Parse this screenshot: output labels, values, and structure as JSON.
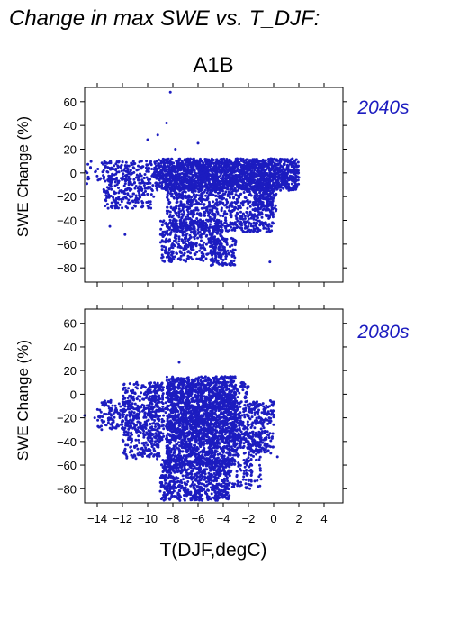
{
  "figure": {
    "title": "Change in max SWE vs. T_DJF:",
    "scenario": "A1B",
    "colors": {
      "points": "#1c1cc0",
      "period_text": "#1c1cc0",
      "axes": "#000000"
    }
  },
  "chart_data": [
    {
      "type": "scatter",
      "period_label": "2040s",
      "ylabel": "SWE Change (%)",
      "xlabel": "",
      "xlim": [
        -15,
        5.5
      ],
      "ylim": [
        -92,
        72
      ],
      "yticks": [
        60,
        40,
        20,
        0,
        -20,
        -40,
        -60,
        -80
      ],
      "xticks": [],
      "series": [
        {
          "clusters": [
            {
              "x": [
                -9.5,
                2
              ],
              "y": [
                -15,
                12
              ],
              "n": 1500
            },
            {
              "x": [
                -8.5,
                0
              ],
              "y": [
                -50,
                10
              ],
              "n": 1300
            },
            {
              "x": [
                -9,
                -4
              ],
              "y": [
                -75,
                -40
              ],
              "n": 450
            },
            {
              "x": [
                -5,
                -3
              ],
              "y": [
                -78,
                -55
              ],
              "n": 120
            },
            {
              "x": [
                -13.5,
                -9.5
              ],
              "y": [
                -30,
                10
              ],
              "n": 300
            },
            {
              "x": [
                -1.5,
                0.2
              ],
              "y": [
                -32,
                -5
              ],
              "n": 120
            },
            {
              "x": [
                -15,
                -11
              ],
              "y": [
                -10,
                10
              ],
              "n": 60
            }
          ],
          "outliers": [
            {
              "x": -8.2,
              "y": 68
            },
            {
              "x": -8.5,
              "y": 42
            },
            {
              "x": -9.2,
              "y": 32
            },
            {
              "x": -10.0,
              "y": 28
            },
            {
              "x": -6.0,
              "y": 25
            },
            {
              "x": -7.8,
              "y": 20
            },
            {
              "x": -11.8,
              "y": -52
            },
            {
              "x": -0.3,
              "y": -75
            },
            {
              "x": -13.0,
              "y": -45
            },
            {
              "x": -14.8,
              "y": 0
            }
          ]
        }
      ]
    },
    {
      "type": "scatter",
      "period_label": "2080s",
      "ylabel": "SWE Change (%)",
      "xlabel": "T(DJF,degC)",
      "xlim": [
        -15,
        5.5
      ],
      "ylim": [
        -92,
        72
      ],
      "yticks": [
        60,
        40,
        20,
        0,
        -20,
        -40,
        -60,
        -80
      ],
      "xticks": [
        -14,
        -12,
        -10,
        -8,
        -6,
        -4,
        -2,
        0,
        2,
        4
      ],
      "series": [
        {
          "clusters": [
            {
              "x": [
                -8.5,
                -3
              ],
              "y": [
                -60,
                15
              ],
              "n": 1700
            },
            {
              "x": [
                -10,
                -2
              ],
              "y": [
                -40,
                10
              ],
              "n": 800
            },
            {
              "x": [
                -9,
                -3.5
              ],
              "y": [
                -90,
                -55
              ],
              "n": 700
            },
            {
              "x": [
                -12,
                -9
              ],
              "y": [
                -55,
                10
              ],
              "n": 400
            },
            {
              "x": [
                -14,
                -11
              ],
              "y": [
                -30,
                -5
              ],
              "n": 150
            },
            {
              "x": [
                -2,
                0
              ],
              "y": [
                -50,
                -5
              ],
              "n": 200
            },
            {
              "x": [
                -3.5,
                -1
              ],
              "y": [
                -80,
                -30
              ],
              "n": 200
            }
          ],
          "outliers": [
            {
              "x": -7.5,
              "y": 27
            },
            {
              "x": -15,
              "y": -18
            },
            {
              "x": -14.2,
              "y": -20
            },
            {
              "x": 0.3,
              "y": -53
            },
            {
              "x": -1.0,
              "y": -72
            }
          ]
        }
      ]
    }
  ]
}
